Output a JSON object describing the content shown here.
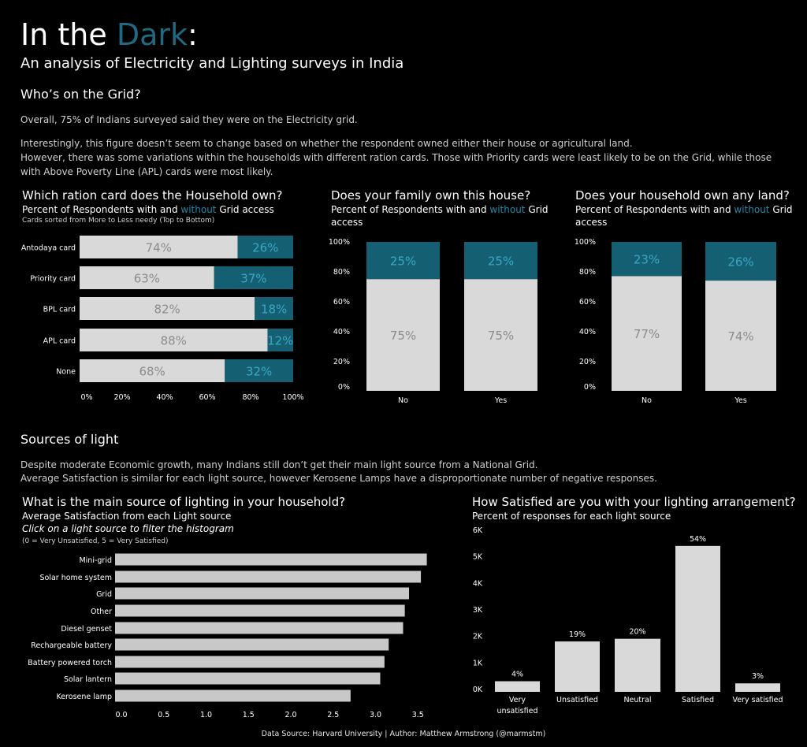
{
  "header": {
    "title_part1": "In the ",
    "title_accent": "Dark",
    "title_part2": ":",
    "subtitle": "An analysis of Electricity and Lighting surveys in India"
  },
  "grid_section": {
    "heading": "Who’s on the Grid?",
    "para1": "Overall, 75% of Indians surveyed said they were on the Electricity grid.",
    "para2": "Interestingly, this figure doesn’t seem to change based on whether the respondent owned either their house or agricultural land.",
    "para3": "However, there was some variations within the households with different ration cards. Those with Priority cards were least likely to be on the Grid, while those with Above Poverty Line (APL) cards were most likely."
  },
  "light_section": {
    "heading": "Sources of light",
    "para1": "Despite moderate Economic growth, many Indians still don’t get their main light source from a National Grid.",
    "para2": "Average Satisfaction is similar for each light source, however Kerosene Lamps have a disproportionate number of negative responses."
  },
  "colors": {
    "with": "#d9d9d9",
    "without": "#155f73",
    "without_text": "#3aa7c4",
    "with_text": "#8c8c8c",
    "bar_gray": "#c8c8c8"
  },
  "footer": "Data Source: Harvard University | Author: Matthew Armstrong (@marmstm)",
  "chart_data": [
    {
      "type": "bar",
      "orientation": "horizontal-stacked",
      "title": "Which ration card does the Household own?",
      "subtitle_prefix": "Percent of Respondents with and ",
      "subtitle_highlight": "without",
      "subtitle_suffix": " Grid access",
      "note": "Cards sorted from More to Less needy (Top to Bottom)",
      "categories": [
        "Antodaya card",
        "Priority card",
        "BPL card",
        "APL card",
        "None"
      ],
      "series": [
        {
          "values": [
            74,
            63,
            82,
            88,
            68
          ]
        },
        {
          "values": [
            26,
            37,
            18,
            12,
            32
          ]
        }
      ],
      "data_labels_with": [
        "74%",
        "63%",
        "82%",
        "88%",
        "68%"
      ],
      "data_labels_without": [
        "26%",
        "37%",
        "18%",
        "12%",
        "32%"
      ],
      "xlim": [
        0,
        100
      ],
      "x_ticks": [
        "0%",
        "20%",
        "40%",
        "60%",
        "80%",
        "100%"
      ]
    },
    {
      "type": "bar",
      "orientation": "vertical-stacked",
      "title": "Does your family own this house?",
      "subtitle_prefix": "Percent of Respondents with and ",
      "subtitle_highlight": "without",
      "subtitle_suffix": " Grid access",
      "categories": [
        "No",
        "Yes"
      ],
      "series": [
        {
          "values": [
            75,
            75
          ]
        },
        {
          "values": [
            25,
            25
          ]
        }
      ],
      "data_labels_with": [
        "75%",
        "75%"
      ],
      "data_labels_without": [
        "25%",
        "25%"
      ],
      "ylim": [
        0,
        100
      ],
      "y_ticks": [
        "0%",
        "20%",
        "40%",
        "60%",
        "80%",
        "100%"
      ]
    },
    {
      "type": "bar",
      "orientation": "vertical-stacked",
      "title": "Does your household own any land?",
      "subtitle_prefix": "Percent of Respondents with and ",
      "subtitle_highlight": "without",
      "subtitle_suffix": " Grid access",
      "categories": [
        "No",
        "Yes"
      ],
      "series": [
        {
          "values": [
            77,
            74
          ]
        },
        {
          "values": [
            23,
            26
          ]
        }
      ],
      "data_labels_with": [
        "77%",
        "74%"
      ],
      "data_labels_without": [
        "23%",
        "26%"
      ],
      "ylim": [
        0,
        100
      ],
      "y_ticks": [
        "0%",
        "20%",
        "40%",
        "60%",
        "80%",
        "100%"
      ]
    },
    {
      "type": "bar",
      "orientation": "horizontal",
      "title": "What is the main source of lighting in your household?",
      "subtitle": "Average Satisfaction from each Light source",
      "instruction": "Click on a light source to filter the histogram",
      "note": "(0 = Very Unsatisfied, 5 = Very Satisfied)",
      "categories": [
        "Mini-grid",
        "Solar home system",
        "Grid",
        "Other",
        "Diesel genset",
        "Rechargeable battery",
        "Battery powered torch",
        "Solar lantern",
        "Kerosene lamp"
      ],
      "values": [
        3.68,
        3.61,
        3.47,
        3.42,
        3.4,
        3.23,
        3.18,
        3.13,
        2.78
      ],
      "xlim": [
        0,
        3.7
      ],
      "x_ticks": [
        "0.0",
        "0.5",
        "1.0",
        "1.5",
        "2.0",
        "2.5",
        "3.0",
        "3.5"
      ]
    },
    {
      "type": "bar",
      "orientation": "vertical",
      "title": "How Satisfied are you with your lighting arrangement?",
      "subtitle": "Percent of responses for each light source",
      "categories": [
        "Very unsatisfied",
        "Unsatisfied",
        "Neutral",
        "Satisfied",
        "Very satisfied"
      ],
      "category_lines": [
        [
          "Very",
          "unsatisfied"
        ],
        [
          "Unsatisfied"
        ],
        [
          "Neutral"
        ],
        [
          "Satisfied"
        ],
        [
          "Very satisfied"
        ]
      ],
      "values": [
        400,
        1900,
        2000,
        5500,
        320
      ],
      "data_labels": [
        "4%",
        "19%",
        "20%",
        "54%",
        "3%"
      ],
      "ylim": [
        0,
        6000
      ],
      "y_ticks": [
        "0K",
        "1K",
        "2K",
        "3K",
        "4K",
        "5K",
        "6K"
      ]
    }
  ]
}
